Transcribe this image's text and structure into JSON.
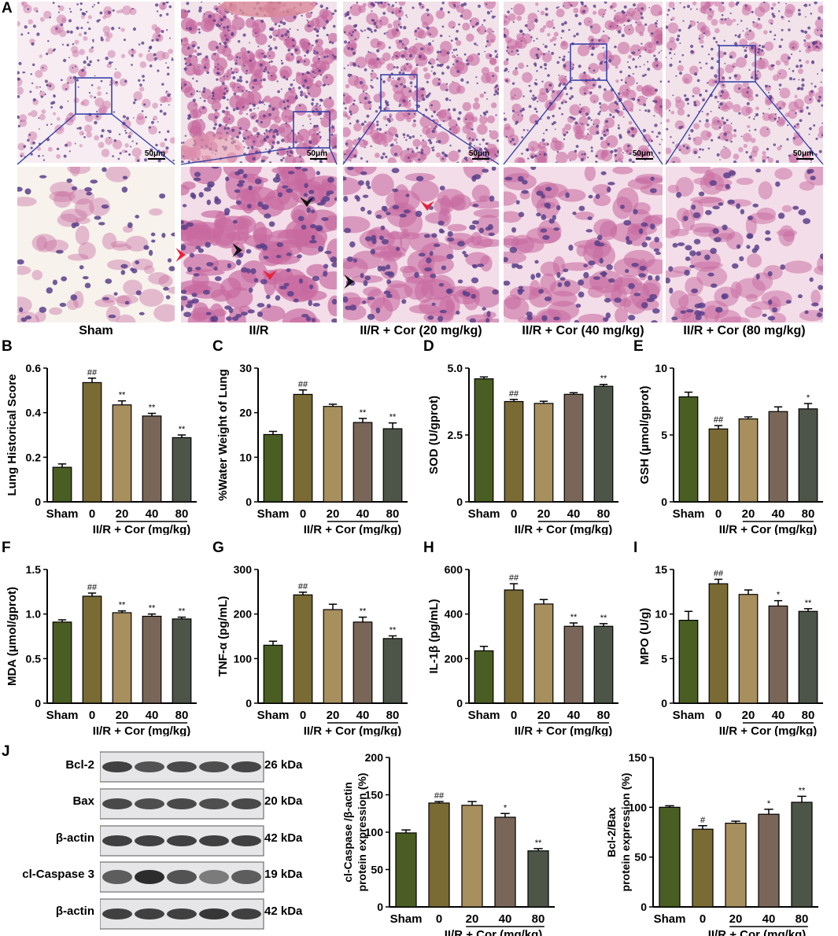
{
  "panel_labels": [
    "A",
    "B",
    "C",
    "D",
    "E",
    "F",
    "G",
    "H",
    "I",
    "J"
  ],
  "histology": {
    "groups": [
      "Sham",
      "II/R",
      "II/R + Cor (20 mg/kg)",
      "II/R + Cor (40 mg/kg)",
      "II/R + Cor (80 mg/kg)"
    ],
    "scale_bar": "50μm",
    "colors": {
      "pink": "#e8a7c4",
      "tissue": "#c76aa0",
      "nuclei": "#5a3f8a",
      "box": "#2d3aa8",
      "arrow_red": "#e8223c",
      "arrow_black": "#111111"
    }
  },
  "bar_colors": [
    "#4a5e23",
    "#7a6a34",
    "#a88f5e",
    "#7a6659",
    "#4d5548"
  ],
  "x_common": {
    "sham": "Sham",
    "doses": [
      "0",
      "20",
      "40",
      "80"
    ],
    "group_label": "II/R + Cor (mg/kg)"
  },
  "chart_data": [
    {
      "id": "B",
      "type": "bar",
      "ylabel": "Lung Historical Score",
      "ylim": [
        0,
        0.6
      ],
      "yticks": [
        "0",
        "0.2",
        "0.4",
        "0.6"
      ],
      "ytick_values": [
        0,
        0.2,
        0.4,
        0.6
      ],
      "values": [
        0.155,
        0.535,
        0.435,
        0.385,
        0.288
      ],
      "errors": [
        0.015,
        0.02,
        0.018,
        0.012,
        0.012
      ],
      "annotations": [
        "",
        "##",
        "**",
        "**",
        "**"
      ]
    },
    {
      "id": "C",
      "type": "bar",
      "ylabel": "%Water Weight of Lung",
      "ylim": [
        0,
        30
      ],
      "yticks": [
        "0",
        "10",
        "20",
        "30"
      ],
      "ytick_values": [
        0,
        10,
        20,
        30
      ],
      "values": [
        15.1,
        24.1,
        21.4,
        17.8,
        16.4
      ],
      "errors": [
        0.7,
        1.0,
        0.5,
        0.9,
        1.3
      ],
      "annotations": [
        "",
        "##",
        "",
        "**",
        "**"
      ]
    },
    {
      "id": "D",
      "type": "bar",
      "ylabel": "SOD (U/gprot)",
      "ylim": [
        0,
        5
      ],
      "yticks": [
        "0",
        "2.5",
        "5.0"
      ],
      "ytick_values": [
        0,
        2.5,
        5
      ],
      "values": [
        4.6,
        3.75,
        3.68,
        4.02,
        4.32
      ],
      "errors": [
        0.07,
        0.08,
        0.08,
        0.06,
        0.07
      ],
      "annotations": [
        "",
        "##",
        "",
        "",
        "**"
      ]
    },
    {
      "id": "E",
      "type": "bar",
      "ylabel": "GSH (μmol/gprot)",
      "ylim": [
        0,
        10
      ],
      "yticks": [
        "0",
        "5",
        "10"
      ],
      "ytick_values": [
        0,
        5,
        10
      ],
      "values": [
        7.85,
        5.45,
        6.2,
        6.75,
        6.95
      ],
      "errors": [
        0.35,
        0.25,
        0.15,
        0.35,
        0.4
      ],
      "annotations": [
        "",
        "##",
        "",
        "",
        "*"
      ]
    },
    {
      "id": "F",
      "type": "bar",
      "ylabel": "MDA (μmol/gprot)",
      "ylim": [
        0,
        1.5
      ],
      "yticks": [
        "0",
        "0.5",
        "1.0",
        "1.5"
      ],
      "ytick_values": [
        0,
        0.5,
        1.0,
        1.5
      ],
      "values": [
        0.91,
        1.2,
        1.015,
        0.975,
        0.945
      ],
      "errors": [
        0.025,
        0.035,
        0.02,
        0.025,
        0.02
      ],
      "annotations": [
        "",
        "##",
        "**",
        "**",
        "**"
      ]
    },
    {
      "id": "G",
      "type": "bar",
      "ylabel": "TNF-α (pg/mL)",
      "ylim": [
        0,
        300
      ],
      "yticks": [
        "0",
        "100",
        "200",
        "300"
      ],
      "ytick_values": [
        0,
        100,
        200,
        300
      ],
      "values": [
        130,
        243,
        210,
        182,
        145
      ],
      "errors": [
        9,
        6,
        12,
        11,
        6
      ],
      "annotations": [
        "",
        "##",
        "",
        "**",
        "**"
      ]
    },
    {
      "id": "H",
      "type": "bar",
      "ylabel": "IL-1β (pg/mL)",
      "ylim": [
        0,
        600
      ],
      "yticks": [
        "0",
        "200",
        "400",
        "600"
      ],
      "ytick_values": [
        0,
        200,
        400,
        600
      ],
      "values": [
        235,
        508,
        445,
        345,
        345
      ],
      "errors": [
        20,
        28,
        20,
        15,
        12
      ],
      "annotations": [
        "",
        "##",
        "",
        "**",
        "**"
      ]
    },
    {
      "id": "I",
      "type": "bar",
      "ylabel": "MPO (U/g)",
      "ylim": [
        0,
        15
      ],
      "yticks": [
        "0",
        "5",
        "10",
        "15"
      ],
      "ytick_values": [
        0,
        5,
        10,
        15
      ],
      "values": [
        9.3,
        13.4,
        12.2,
        10.9,
        10.3
      ],
      "errors": [
        1.0,
        0.5,
        0.5,
        0.6,
        0.3
      ],
      "annotations": [
        "",
        "##",
        "",
        "*",
        "**"
      ]
    },
    {
      "id": "J1",
      "type": "bar",
      "ylabel": "cl-Caspase /β-actin protein expression (%)",
      "ylabel_lines": [
        "cl-Caspase /β-actin",
        "protein expression (%)"
      ],
      "ylim": [
        0,
        200
      ],
      "yticks": [
        "0",
        "50",
        "100",
        "150",
        "200"
      ],
      "ytick_values": [
        0,
        50,
        100,
        150,
        200
      ],
      "values": [
        99,
        139,
        136,
        120,
        75
      ],
      "errors": [
        4,
        2,
        5,
        5,
        3
      ],
      "annotations": [
        "",
        "##",
        "",
        "*",
        "**"
      ]
    },
    {
      "id": "J2",
      "type": "bar",
      "ylabel": "Bcl-2/Bax protein expression (%)",
      "ylabel_lines": [
        "Bcl-2/Bax",
        "protein expression (%)"
      ],
      "ylim": [
        0,
        150
      ],
      "yticks": [
        "0",
        "50",
        "100",
        "150"
      ],
      "ytick_values": [
        0,
        50,
        100,
        150
      ],
      "values": [
        100,
        78,
        84,
        93,
        105
      ],
      "errors": [
        1.5,
        3.5,
        2,
        5,
        6
      ],
      "annotations": [
        "",
        "#",
        "",
        "*",
        "**"
      ]
    }
  ],
  "western_blot": {
    "rows": [
      {
        "label": "Bcl-2",
        "kda": "26 kDa"
      },
      {
        "label": "Bax",
        "kda": "20 kDa"
      },
      {
        "label": "β-actin",
        "kda": "42 kDa"
      },
      {
        "label": "cl-Caspase 3",
        "kda": "19 kDa"
      },
      {
        "label": "β-actin",
        "kda": "42 kDa"
      }
    ]
  }
}
